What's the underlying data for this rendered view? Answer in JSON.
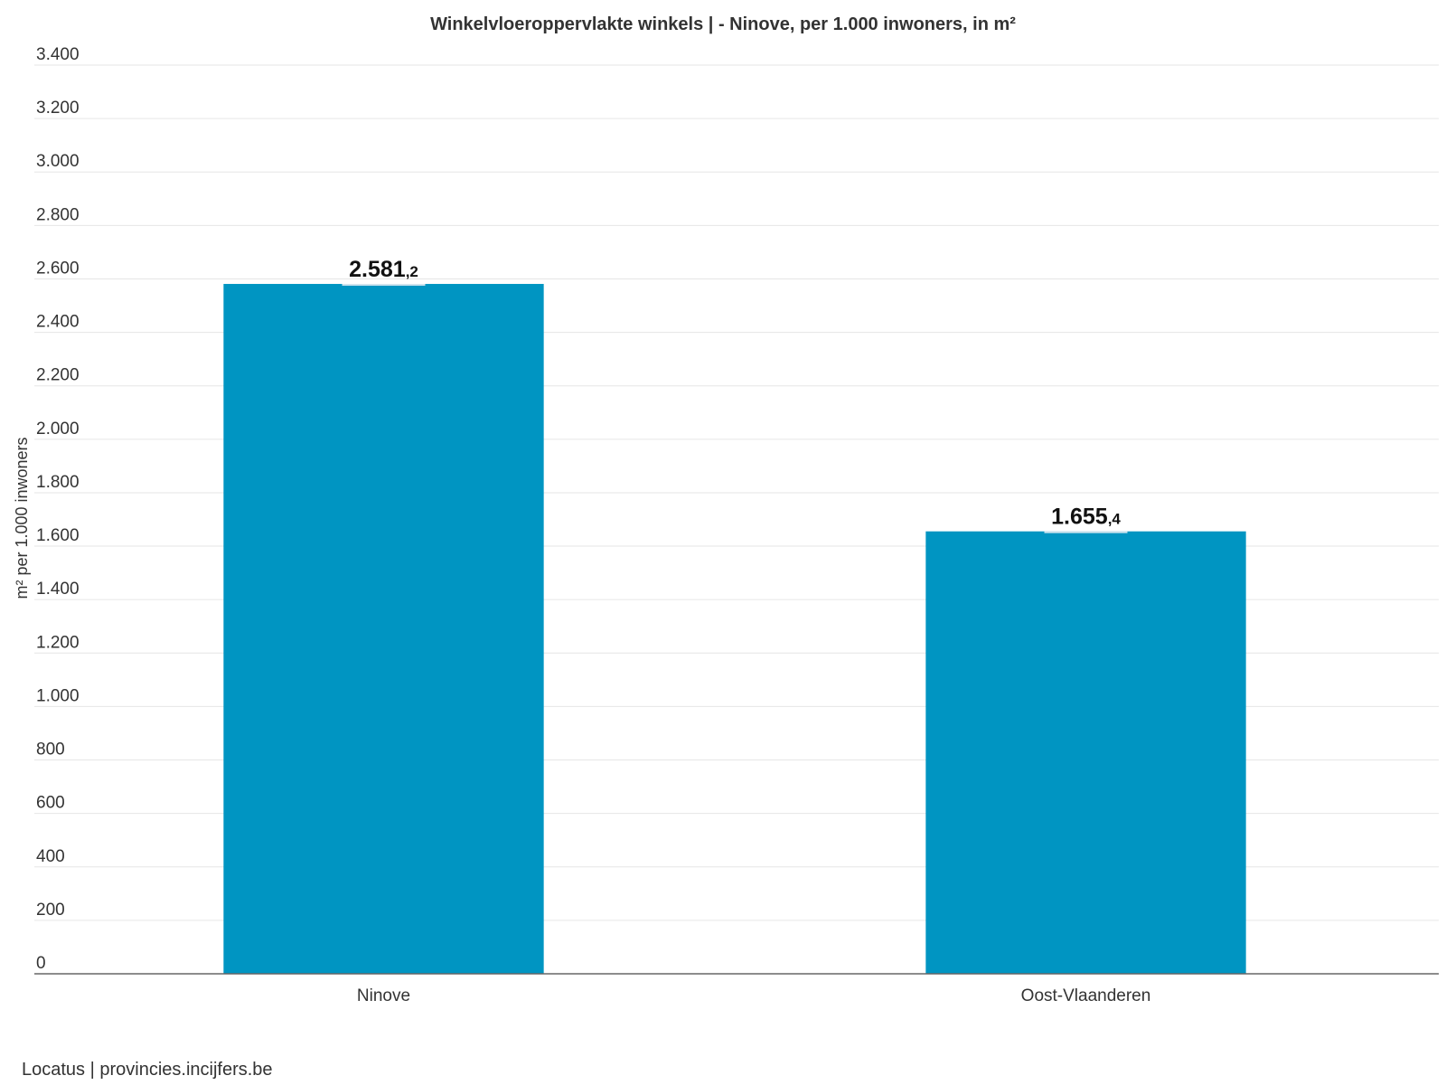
{
  "chart_data": {
    "type": "bar",
    "title": "Winkelvloeroppervlakte winkels | - Ninove, per 1.000 inwoners, in m²",
    "xlabel": "",
    "ylabel": "m² per 1.000 inwoners",
    "categories": [
      "Ninove",
      "Oost-Vlaanderen"
    ],
    "values": [
      2581.2,
      1655.4
    ],
    "value_labels": [
      {
        "main": "2.581",
        "decimal": ",2"
      },
      {
        "main": "1.655",
        "decimal": ",4"
      }
    ],
    "ylim": [
      0,
      3400
    ],
    "yticks": [
      0,
      200,
      400,
      600,
      800,
      1000,
      1200,
      1400,
      1600,
      1800,
      2000,
      2200,
      2400,
      2600,
      2800,
      3000,
      3200,
      3400
    ],
    "ytick_labels": [
      "0",
      "200",
      "400",
      "600",
      "800",
      "1.000",
      "1.200",
      "1.400",
      "1.600",
      "1.800",
      "2.000",
      "2.200",
      "2.400",
      "2.600",
      "2.800",
      "3.000",
      "3.200",
      "3.400"
    ],
    "grid": true,
    "legend": "none",
    "bar_color": "#0095c2"
  },
  "source": "Locatus | provincies.incijfers.be"
}
